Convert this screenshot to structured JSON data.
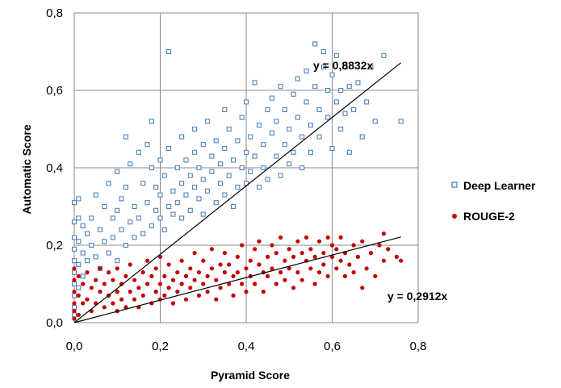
{
  "chart_data": {
    "type": "scatter",
    "title": "",
    "xlabel": "Pyramid Score",
    "ylabel": "Automatic Score",
    "xlim": [
      0,
      0.8
    ],
    "ylim": [
      0,
      0.8
    ],
    "x_ticks": [
      "0,0",
      "0,2",
      "0,4",
      "0,6",
      "0,8"
    ],
    "y_ticks": [
      "0,0",
      "0,2",
      "0,4",
      "0,6",
      "0,8"
    ],
    "grid": true,
    "legend_position": "right",
    "series": [
      {
        "name": "Deep Learner",
        "color": "#4F81BD",
        "marker": "hollow-square",
        "trendline": {
          "slope": 0.8832,
          "label": "y = 0,8832x",
          "x_end": 0.76
        },
        "points": [
          [
            0.0,
            0.31
          ],
          [
            0.0,
            0.26
          ],
          [
            0.0,
            0.22
          ],
          [
            0.0,
            0.19
          ],
          [
            0.0,
            0.16
          ],
          [
            0.0,
            0.13
          ],
          [
            0.0,
            0.1
          ],
          [
            0.0,
            0.07
          ],
          [
            0.0,
            0.04
          ],
          [
            0.0,
            0.02
          ],
          [
            0.01,
            0.32
          ],
          [
            0.01,
            0.27
          ],
          [
            0.01,
            0.21
          ],
          [
            0.01,
            0.15
          ],
          [
            0.01,
            0.09
          ],
          [
            0.02,
            0.25
          ],
          [
            0.02,
            0.18
          ],
          [
            0.02,
            0.12
          ],
          [
            0.03,
            0.23
          ],
          [
            0.03,
            0.16
          ],
          [
            0.04,
            0.27
          ],
          [
            0.04,
            0.2
          ],
          [
            0.05,
            0.17
          ],
          [
            0.05,
            0.33
          ],
          [
            0.06,
            0.24
          ],
          [
            0.06,
            0.14
          ],
          [
            0.07,
            0.3
          ],
          [
            0.07,
            0.21
          ],
          [
            0.08,
            0.36
          ],
          [
            0.08,
            0.18
          ],
          [
            0.09,
            0.27
          ],
          [
            0.09,
            0.22
          ],
          [
            0.1,
            0.16
          ],
          [
            0.1,
            0.29
          ],
          [
            0.1,
            0.39
          ],
          [
            0.11,
            0.24
          ],
          [
            0.11,
            0.32
          ],
          [
            0.12,
            0.2
          ],
          [
            0.12,
            0.35
          ],
          [
            0.12,
            0.48
          ],
          [
            0.13,
            0.26
          ],
          [
            0.13,
            0.41
          ],
          [
            0.14,
            0.22
          ],
          [
            0.14,
            0.3
          ],
          [
            0.15,
            0.44
          ],
          [
            0.15,
            0.27
          ],
          [
            0.16,
            0.23
          ],
          [
            0.16,
            0.36
          ],
          [
            0.17,
            0.31
          ],
          [
            0.17,
            0.46
          ],
          [
            0.18,
            0.25
          ],
          [
            0.18,
            0.4
          ],
          [
            0.18,
            0.52
          ],
          [
            0.19,
            0.29
          ],
          [
            0.19,
            0.35
          ],
          [
            0.2,
            0.27
          ],
          [
            0.2,
            0.42
          ],
          [
            0.2,
            0.33
          ],
          [
            0.21,
            0.38
          ],
          [
            0.21,
            0.24
          ],
          [
            0.22,
            0.3
          ],
          [
            0.22,
            0.45
          ],
          [
            0.22,
            0.7
          ],
          [
            0.23,
            0.34
          ],
          [
            0.23,
            0.28
          ],
          [
            0.24,
            0.4
          ],
          [
            0.24,
            0.31
          ],
          [
            0.25,
            0.36
          ],
          [
            0.25,
            0.48
          ],
          [
            0.25,
            0.27
          ],
          [
            0.26,
            0.33
          ],
          [
            0.26,
            0.42
          ],
          [
            0.27,
            0.29
          ],
          [
            0.27,
            0.38
          ],
          [
            0.28,
            0.35
          ],
          [
            0.28,
            0.5
          ],
          [
            0.28,
            0.44
          ],
          [
            0.29,
            0.32
          ],
          [
            0.29,
            0.4
          ],
          [
            0.3,
            0.37
          ],
          [
            0.3,
            0.46
          ],
          [
            0.3,
            0.28
          ],
          [
            0.31,
            0.34
          ],
          [
            0.31,
            0.52
          ],
          [
            0.32,
            0.39
          ],
          [
            0.32,
            0.43
          ],
          [
            0.33,
            0.31
          ],
          [
            0.33,
            0.47
          ],
          [
            0.34,
            0.36
          ],
          [
            0.34,
            0.41
          ],
          [
            0.35,
            0.55
          ],
          [
            0.35,
            0.33
          ],
          [
            0.35,
            0.45
          ],
          [
            0.36,
            0.38
          ],
          [
            0.36,
            0.5
          ],
          [
            0.37,
            0.42
          ],
          [
            0.37,
            0.3
          ],
          [
            0.38,
            0.47
          ],
          [
            0.38,
            0.35
          ],
          [
            0.39,
            0.53
          ],
          [
            0.39,
            0.4
          ],
          [
            0.4,
            0.44
          ],
          [
            0.4,
            0.36
          ],
          [
            0.4,
            0.57
          ],
          [
            0.41,
            0.48
          ],
          [
            0.41,
            0.39
          ],
          [
            0.42,
            0.62
          ],
          [
            0.42,
            0.43
          ],
          [
            0.43,
            0.35
          ],
          [
            0.43,
            0.51
          ],
          [
            0.44,
            0.46
          ],
          [
            0.44,
            0.4
          ],
          [
            0.45,
            0.55
          ],
          [
            0.45,
            0.37
          ],
          [
            0.46,
            0.49
          ],
          [
            0.46,
            0.58
          ],
          [
            0.47,
            0.43
          ],
          [
            0.47,
            0.52
          ],
          [
            0.48,
            0.38
          ],
          [
            0.48,
            0.61
          ],
          [
            0.49,
            0.46
          ],
          [
            0.49,
            0.55
          ],
          [
            0.5,
            0.41
          ],
          [
            0.5,
            0.5
          ],
          [
            0.51,
            0.59
          ],
          [
            0.51,
            0.44
          ],
          [
            0.52,
            0.53
          ],
          [
            0.52,
            0.63
          ],
          [
            0.53,
            0.48
          ],
          [
            0.53,
            0.4
          ],
          [
            0.54,
            0.57
          ],
          [
            0.54,
            0.65
          ],
          [
            0.55,
            0.51
          ],
          [
            0.55,
            0.44
          ],
          [
            0.56,
            0.61
          ],
          [
            0.56,
            0.72
          ],
          [
            0.57,
            0.55
          ],
          [
            0.57,
            0.48
          ],
          [
            0.58,
            0.66
          ],
          [
            0.58,
            0.7
          ],
          [
            0.59,
            0.53
          ],
          [
            0.59,
            0.6
          ],
          [
            0.6,
            0.45
          ],
          [
            0.6,
            0.64
          ],
          [
            0.61,
            0.57
          ],
          [
            0.61,
            0.69
          ],
          [
            0.62,
            0.5
          ],
          [
            0.62,
            0.6
          ],
          [
            0.63,
            0.66
          ],
          [
            0.63,
            0.54
          ],
          [
            0.64,
            0.44
          ],
          [
            0.64,
            0.61
          ],
          [
            0.65,
            0.55
          ],
          [
            0.66,
            0.62
          ],
          [
            0.67,
            0.48
          ],
          [
            0.68,
            0.57
          ],
          [
            0.69,
            0.66
          ],
          [
            0.7,
            0.52
          ],
          [
            0.72,
            0.69
          ],
          [
            0.76,
            0.52
          ]
        ]
      },
      {
        "name": "ROUGE-2",
        "color": "#C00000",
        "marker": "filled-circle",
        "trendline": {
          "slope": 0.2912,
          "label": "y = 0,2912x",
          "x_end": 0.76
        },
        "points": [
          [
            0.0,
            0.14
          ],
          [
            0.0,
            0.11
          ],
          [
            0.0,
            0.08
          ],
          [
            0.0,
            0.05
          ],
          [
            0.0,
            0.03
          ],
          [
            0.0,
            0.01
          ],
          [
            0.01,
            0.12
          ],
          [
            0.01,
            0.07
          ],
          [
            0.01,
            0.02
          ],
          [
            0.02,
            0.1
          ],
          [
            0.02,
            0.05
          ],
          [
            0.03,
            0.13
          ],
          [
            0.03,
            0.06
          ],
          [
            0.04,
            0.09
          ],
          [
            0.04,
            0.03
          ],
          [
            0.05,
            0.11
          ],
          [
            0.05,
            0.05
          ],
          [
            0.06,
            0.08
          ],
          [
            0.06,
            0.14
          ],
          [
            0.07,
            0.04
          ],
          [
            0.07,
            0.1
          ],
          [
            0.08,
            0.07
          ],
          [
            0.08,
            0.13
          ],
          [
            0.09,
            0.05
          ],
          [
            0.09,
            0.11
          ],
          [
            0.1,
            0.08
          ],
          [
            0.1,
            0.03
          ],
          [
            0.1,
            0.14
          ],
          [
            0.11,
            0.06
          ],
          [
            0.11,
            0.1
          ],
          [
            0.12,
            0.04
          ],
          [
            0.12,
            0.12
          ],
          [
            0.13,
            0.08
          ],
          [
            0.13,
            0.15
          ],
          [
            0.14,
            0.06
          ],
          [
            0.14,
            0.11
          ],
          [
            0.15,
            0.09
          ],
          [
            0.15,
            0.04
          ],
          [
            0.16,
            0.13
          ],
          [
            0.16,
            0.07
          ],
          [
            0.17,
            0.1
          ],
          [
            0.17,
            0.16
          ],
          [
            0.18,
            0.05
          ],
          [
            0.18,
            0.12
          ],
          [
            0.19,
            0.08
          ],
          [
            0.19,
            0.14
          ],
          [
            0.2,
            0.06
          ],
          [
            0.2,
            0.1
          ],
          [
            0.2,
            0.17
          ],
          [
            0.21,
            0.12
          ],
          [
            0.21,
            0.07
          ],
          [
            0.22,
            0.09
          ],
          [
            0.22,
            0.15
          ],
          [
            0.23,
            0.11
          ],
          [
            0.23,
            0.05
          ],
          [
            0.24,
            0.13
          ],
          [
            0.24,
            0.08
          ],
          [
            0.25,
            0.16
          ],
          [
            0.25,
            0.1
          ],
          [
            0.26,
            0.06
          ],
          [
            0.26,
            0.12
          ],
          [
            0.27,
            0.14
          ],
          [
            0.27,
            0.09
          ],
          [
            0.28,
            0.18
          ],
          [
            0.28,
            0.11
          ],
          [
            0.29,
            0.07
          ],
          [
            0.29,
            0.13
          ],
          [
            0.3,
            0.1
          ],
          [
            0.3,
            0.16
          ],
          [
            0.31,
            0.12
          ],
          [
            0.31,
            0.08
          ],
          [
            0.32,
            0.14
          ],
          [
            0.32,
            0.19
          ],
          [
            0.33,
            0.11
          ],
          [
            0.33,
            0.06
          ],
          [
            0.34,
            0.15
          ],
          [
            0.34,
            0.09
          ],
          [
            0.35,
            0.13
          ],
          [
            0.35,
            0.18
          ],
          [
            0.36,
            0.1
          ],
          [
            0.36,
            0.15
          ],
          [
            0.37,
            0.12
          ],
          [
            0.37,
            0.07
          ],
          [
            0.38,
            0.17
          ],
          [
            0.38,
            0.13
          ],
          [
            0.39,
            0.1
          ],
          [
            0.39,
            0.2
          ],
          [
            0.4,
            0.14
          ],
          [
            0.4,
            0.08
          ],
          [
            0.41,
            0.16
          ],
          [
            0.41,
            0.12
          ],
          [
            0.42,
            0.19
          ],
          [
            0.42,
            0.1
          ],
          [
            0.43,
            0.15
          ],
          [
            0.43,
            0.21
          ],
          [
            0.44,
            0.13
          ],
          [
            0.44,
            0.08
          ],
          [
            0.45,
            0.17
          ],
          [
            0.45,
            0.12
          ],
          [
            0.46,
            0.2
          ],
          [
            0.46,
            0.14
          ],
          [
            0.47,
            0.1
          ],
          [
            0.47,
            0.18
          ],
          [
            0.48,
            0.13
          ],
          [
            0.48,
            0.22
          ],
          [
            0.49,
            0.16
          ],
          [
            0.49,
            0.11
          ],
          [
            0.5,
            0.19
          ],
          [
            0.5,
            0.14
          ],
          [
            0.51,
            0.09
          ],
          [
            0.51,
            0.17
          ],
          [
            0.52,
            0.21
          ],
          [
            0.52,
            0.13
          ],
          [
            0.53,
            0.18
          ],
          [
            0.53,
            0.11
          ],
          [
            0.54,
            0.16
          ],
          [
            0.54,
            0.22
          ],
          [
            0.55,
            0.14
          ],
          [
            0.55,
            0.19
          ],
          [
            0.56,
            0.1
          ],
          [
            0.56,
            0.17
          ],
          [
            0.57,
            0.21
          ],
          [
            0.57,
            0.13
          ],
          [
            0.58,
            0.18
          ],
          [
            0.58,
            0.15
          ],
          [
            0.59,
            0.22
          ],
          [
            0.59,
            0.12
          ],
          [
            0.6,
            0.17
          ],
          [
            0.6,
            0.2
          ],
          [
            0.61,
            0.14
          ],
          [
            0.61,
            0.19
          ],
          [
            0.62,
            0.16
          ],
          [
            0.62,
            0.22
          ],
          [
            0.63,
            0.12
          ],
          [
            0.63,
            0.18
          ],
          [
            0.64,
            0.15
          ],
          [
            0.65,
            0.2
          ],
          [
            0.65,
            0.13
          ],
          [
            0.66,
            0.17
          ],
          [
            0.67,
            0.09
          ],
          [
            0.67,
            0.21
          ],
          [
            0.68,
            0.14
          ],
          [
            0.69,
            0.18
          ],
          [
            0.7,
            0.12
          ],
          [
            0.71,
            0.2
          ],
          [
            0.72,
            0.16
          ],
          [
            0.72,
            0.23
          ],
          [
            0.73,
            0.19
          ],
          [
            0.75,
            0.17
          ],
          [
            0.76,
            0.16
          ]
        ]
      }
    ]
  }
}
